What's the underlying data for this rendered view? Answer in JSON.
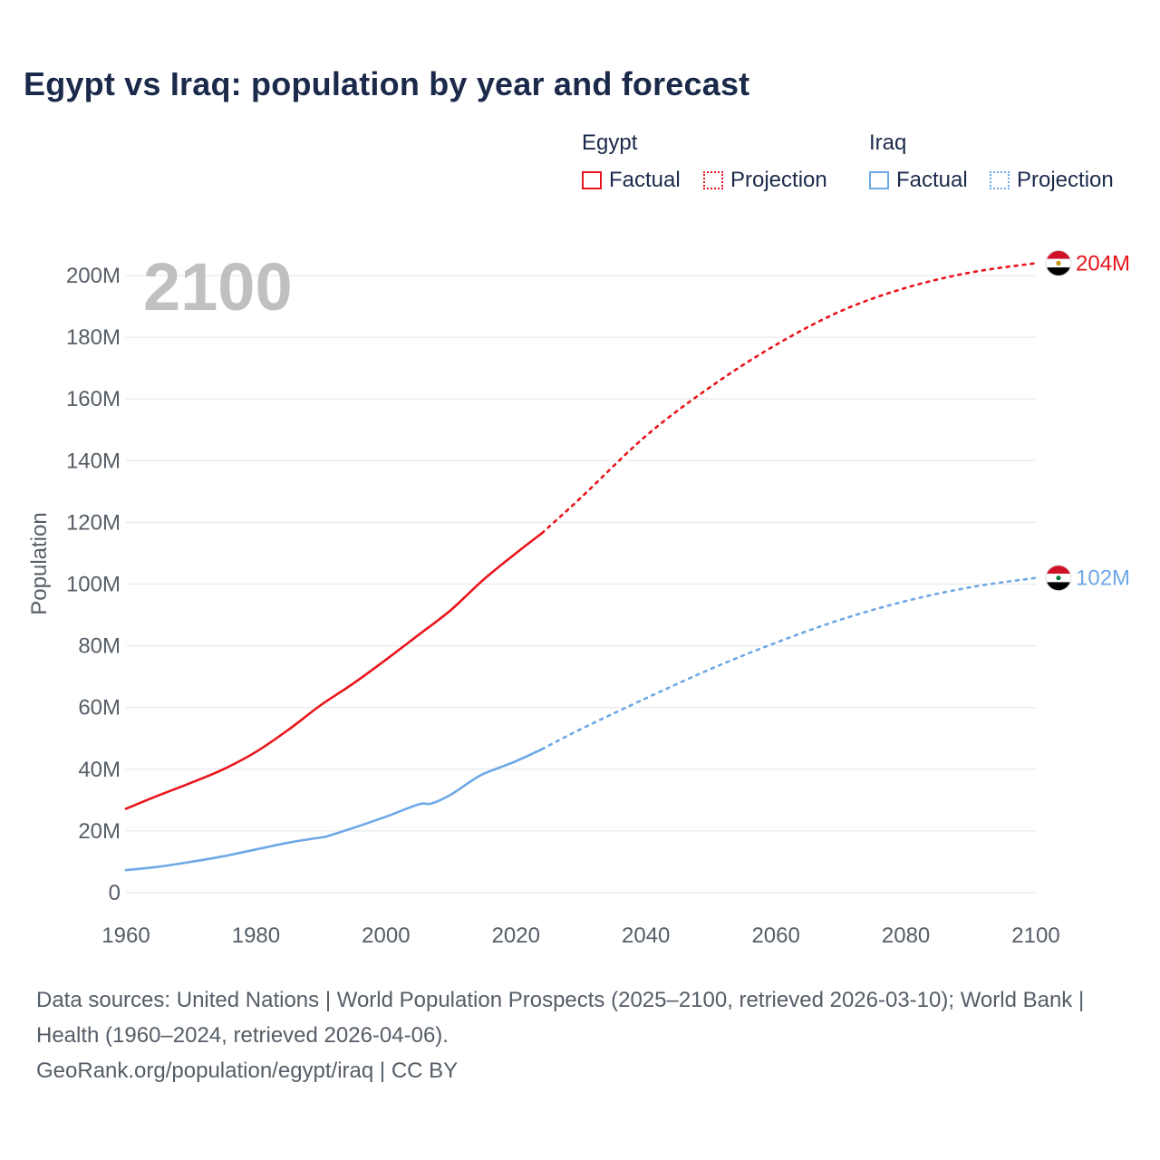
{
  "title": "Egypt vs Iraq: population by year and forecast",
  "legend": {
    "egypt": {
      "name": "Egypt",
      "factual": "Factual",
      "projection": "Projection"
    },
    "iraq": {
      "name": "Iraq",
      "factual": "Factual",
      "projection": "Projection"
    }
  },
  "colors": {
    "egypt": "#e8141b",
    "iraq": "#6ea8e6",
    "grid": "#e5e5e5",
    "axis_text": "#555d66",
    "year_label": "#c0c0c0"
  },
  "chart_data": {
    "type": "line",
    "ylabel": "Population",
    "xlabel": "",
    "year_overlay": "2100",
    "xlim": [
      1960,
      2100
    ],
    "ylim": [
      0,
      200
    ],
    "x_ticks": [
      1960,
      1980,
      2000,
      2020,
      2040,
      2060,
      2080,
      2100
    ],
    "x_tick_labels": [
      "1960",
      "1980",
      "2000",
      "2020",
      "2040",
      "2060",
      "2080",
      "2100"
    ],
    "y_ticks": [
      0,
      20,
      40,
      60,
      80,
      100,
      120,
      140,
      160,
      180,
      200
    ],
    "y_tick_labels": [
      "0",
      "20M",
      "40M",
      "60M",
      "80M",
      "100M",
      "120M",
      "140M",
      "160M",
      "180M",
      "200M"
    ],
    "series": [
      {
        "name": "Egypt",
        "end_label": "204M",
        "factual": [
          [
            1960,
            27.2
          ],
          [
            1965,
            31.5
          ],
          [
            1970,
            35.6
          ],
          [
            1975,
            40.0
          ],
          [
            1980,
            45.6
          ],
          [
            1985,
            52.8
          ],
          [
            1990,
            60.8
          ],
          [
            1995,
            67.8
          ],
          [
            2000,
            75.5
          ],
          [
            2005,
            83.5
          ],
          [
            2010,
            91.6
          ],
          [
            2015,
            101.4
          ],
          [
            2020,
            110.0
          ],
          [
            2024,
            116.5
          ]
        ],
        "projection": [
          [
            2024,
            116.5
          ],
          [
            2030,
            128.0
          ],
          [
            2040,
            148.0
          ],
          [
            2050,
            164.0
          ],
          [
            2060,
            177.5
          ],
          [
            2070,
            188.5
          ],
          [
            2080,
            196.0
          ],
          [
            2090,
            201.0
          ],
          [
            2100,
            204.0
          ]
        ]
      },
      {
        "name": "Iraq",
        "end_label": "102M",
        "factual": [
          [
            1960,
            7.3
          ],
          [
            1965,
            8.4
          ],
          [
            1970,
            10.0
          ],
          [
            1975,
            11.8
          ],
          [
            1980,
            14.0
          ],
          [
            1985,
            16.2
          ],
          [
            1990,
            17.9
          ],
          [
            1991,
            18.3
          ],
          [
            1995,
            21.0
          ],
          [
            2000,
            24.6
          ],
          [
            2005,
            28.6
          ],
          [
            2007,
            28.9
          ],
          [
            2010,
            31.8
          ],
          [
            2013,
            36.0
          ],
          [
            2015,
            38.5
          ],
          [
            2020,
            42.6
          ],
          [
            2024,
            46.5
          ]
        ],
        "projection": [
          [
            2024,
            46.5
          ],
          [
            2030,
            53.0
          ],
          [
            2040,
            63.0
          ],
          [
            2050,
            72.5
          ],
          [
            2060,
            81.0
          ],
          [
            2070,
            88.5
          ],
          [
            2080,
            94.5
          ],
          [
            2090,
            99.0
          ],
          [
            2100,
            102.0
          ]
        ]
      }
    ]
  },
  "footer": {
    "sources": "Data sources: United Nations | World Population Prospects (2025–2100, retrieved 2026-03-10); World Bank | Health (1960–2024, retrieved 2026-04-06).",
    "credit": "GeoRank.org/population/egypt/iraq | CC BY"
  }
}
